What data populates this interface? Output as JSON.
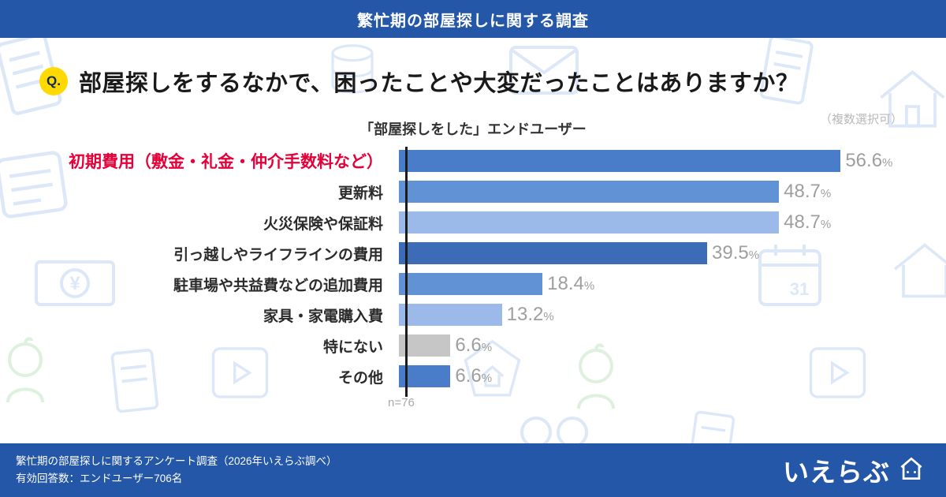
{
  "header": {
    "title": "繁忙期の部屋探しに関する調査"
  },
  "question": {
    "badge": "Q.",
    "text": "部屋探しをするなかで、困ったことや大変だったことはありますか？",
    "note": "（複数選択可）"
  },
  "chart_data": {
    "type": "bar",
    "orientation": "horizontal",
    "title": "「部屋探しをした」エンドユーザー",
    "categories": [
      "初期費用（敷金・礼金・仲介手数料など）",
      "更新料",
      "火災保険や保証料",
      "引っ越しやライフラインの費用",
      "駐車場や共益費などの追加費用",
      "家具・家電購入費",
      "特にない",
      "その他"
    ],
    "values": [
      56.6,
      48.7,
      48.7,
      39.5,
      18.4,
      13.2,
      6.6,
      6.6
    ],
    "value_labels": [
      "56.6",
      "48.7",
      "48.7",
      "39.5",
      "18.4",
      "13.2",
      "6.6",
      "6.6"
    ],
    "unit": "%",
    "xlim": [
      0,
      60
    ],
    "grid": false,
    "legend": "none",
    "bar_colors": [
      "#4a7dc9",
      "#6292d6",
      "#9bbae9",
      "#3c6cb8",
      "#6292d6",
      "#9bbae9",
      "#c6c6c6",
      "#4a7dc9"
    ],
    "highlight_label_color": "#e60039",
    "value_label_color": "#9e9e9e",
    "sample_note": "n=76"
  },
  "footer": {
    "line1": "繁忙期の部屋探しに関するアンケート調査（2026年いえらぶ調べ）",
    "line2": "有効回答数：エンドユーザー706名",
    "logo_text": "いえらぶ"
  },
  "colors": {
    "bar_background": "#2457a7",
    "question_badge": "#ffd900",
    "watermark_blue": "#d6e4f6",
    "watermark_green": "#d9eed9"
  }
}
